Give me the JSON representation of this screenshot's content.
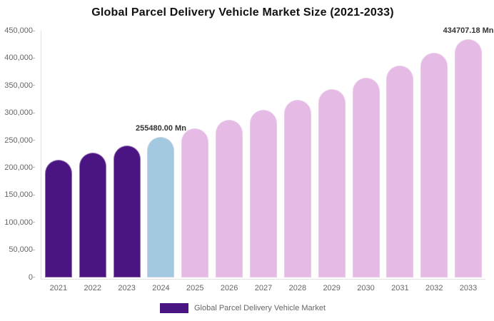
{
  "chart_data": {
    "type": "bar",
    "title": "Global Parcel Delivery Vehicle Market Size (2021-2033)",
    "categories": [
      "2021",
      "2022",
      "2023",
      "2024",
      "2025",
      "2026",
      "2027",
      "2028",
      "2029",
      "2030",
      "2031",
      "2032",
      "2033"
    ],
    "series": [
      {
        "name": "Global Parcel Delivery Vehicle Market",
        "values": [
          214000,
          227030,
          240830,
          255480,
          271022,
          287510,
          305000,
          323560,
          343240,
          364130,
          386280,
          409780,
          434707.18
        ]
      }
    ],
    "unit": "Mn",
    "data_labels": [
      "",
      "",
      "",
      "255480.00 Mn",
      "",
      "",
      "",
      "",
      "",
      "",
      "",
      "",
      "434707.18 Mn"
    ],
    "y_ticks": [
      "450,000",
      "400,000",
      "350,000",
      "300,000",
      "250,000",
      "200,000",
      "150,000",
      "100,000",
      "50,000",
      "0"
    ],
    "ylim": [
      0,
      450000
    ],
    "grid": false,
    "legend_position": "bottom",
    "colors": {
      "historical": "#4a1582",
      "current": "#a3c9e1",
      "forecast": "#e5bbe5"
    },
    "bar_color_roles": [
      "historical",
      "historical",
      "historical",
      "current",
      "forecast",
      "forecast",
      "forecast",
      "forecast",
      "forecast",
      "forecast",
      "forecast",
      "forecast",
      "forecast"
    ]
  },
  "legend": {
    "label": "Global Parcel Delivery Vehicle Market",
    "swatch_color": "#4a1582"
  }
}
